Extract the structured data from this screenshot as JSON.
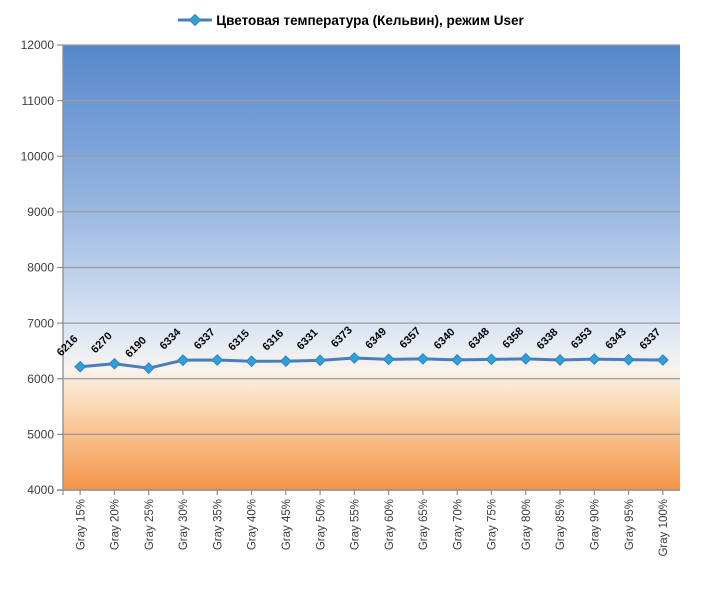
{
  "legend": {
    "label": "Цветовая температура (Кельвин), режим User"
  },
  "chart_data": {
    "type": "line",
    "title": "Цветовая температура (Кельвин), режим User",
    "categories": [
      "Gray 15%",
      "Gray 20%",
      "Gray 25%",
      "Gray 30%",
      "Gray 35%",
      "Gray 40%",
      "Gray 45%",
      "Gray 50%",
      "Gray 55%",
      "Gray 60%",
      "Gray 65%",
      "Gray 70%",
      "Gray 75%",
      "Gray 80%",
      "Gray 85%",
      "Gray 90%",
      "Gray 95%",
      "Gray 100%"
    ],
    "series": [
      {
        "name": "Цветовая температура (Кельвин), режим User",
        "values": [
          6216,
          6270,
          6190,
          6334,
          6337,
          6315,
          6316,
          6331,
          6373,
          6349,
          6357,
          6340,
          6348,
          6358,
          6338,
          6353,
          6343,
          6337
        ]
      }
    ],
    "xlabel": "",
    "ylabel": "",
    "ylim": [
      4000,
      12000
    ],
    "ytick_step": 1000,
    "grid": true,
    "legend_position": "top-center",
    "marker_shape": "diamond",
    "data_labels_rotation_deg": -45,
    "x_labels_rotation_deg": -90,
    "colors": {
      "line": "#4a7ebb",
      "marker": "#29a3dc",
      "marker_border": "#3a7dbd",
      "grid": "#9a9a9a",
      "axis": "#8c8c8c",
      "axis_label": "#3d3d3d",
      "data_label": "#000000",
      "bg_gradient": [
        {
          "offset": 0.0,
          "color": "#5586cb"
        },
        {
          "offset": 0.12,
          "color": "#6b97d3"
        },
        {
          "offset": 0.24,
          "color": "#7fa5da"
        },
        {
          "offset": 0.35,
          "color": "#95b5e0"
        },
        {
          "offset": 0.46,
          "color": "#b0c7e8"
        },
        {
          "offset": 0.57,
          "color": "#ccdaef"
        },
        {
          "offset": 0.645,
          "color": "#dde7f4"
        },
        {
          "offset": 0.7,
          "color": "#eff0f2"
        },
        {
          "offset": 0.735,
          "color": "#f9f2ea"
        },
        {
          "offset": 0.8,
          "color": "#fbdcba"
        },
        {
          "offset": 0.89,
          "color": "#f8bb84"
        },
        {
          "offset": 1.0,
          "color": "#f5944a"
        }
      ]
    }
  }
}
